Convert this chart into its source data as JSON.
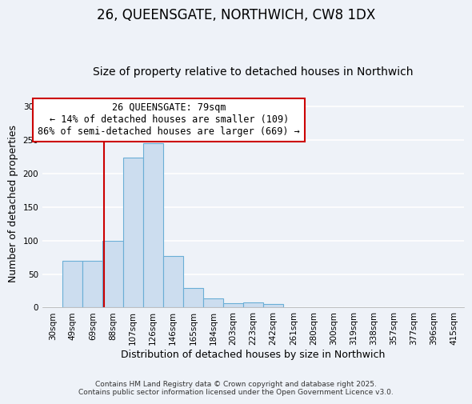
{
  "title": "26, QUEENSGATE, NORTHWICH, CW8 1DX",
  "subtitle": "Size of property relative to detached houses in Northwich",
  "xlabel": "Distribution of detached houses by size in Northwich",
  "ylabel": "Number of detached properties",
  "bar_labels": [
    "30sqm",
    "49sqm",
    "69sqm",
    "88sqm",
    "107sqm",
    "126sqm",
    "146sqm",
    "165sqm",
    "184sqm",
    "203sqm",
    "223sqm",
    "242sqm",
    "261sqm",
    "280sqm",
    "300sqm",
    "319sqm",
    "338sqm",
    "357sqm",
    "377sqm",
    "396sqm",
    "415sqm"
  ],
  "bar_values": [
    0,
    70,
    70,
    100,
    224,
    245,
    77,
    29,
    14,
    6,
    8,
    5,
    1,
    1,
    0,
    0,
    0,
    1,
    0,
    0,
    1
  ],
  "bar_color": "#ccddef",
  "bar_edge_color": "#6aaed6",
  "bar_width": 1.0,
  "vline_color": "#cc0000",
  "annotation_line1": "26 QUEENSGATE: 79sqm",
  "annotation_line2": "← 14% of detached houses are smaller (109)",
  "annotation_line3": "86% of semi-detached houses are larger (669) →",
  "box_color": "#cc0000",
  "ylim": [
    0,
    310
  ],
  "yticks": [
    0,
    50,
    100,
    150,
    200,
    250,
    300
  ],
  "footer1": "Contains HM Land Registry data © Crown copyright and database right 2025.",
  "footer2": "Contains public sector information licensed under the Open Government Licence v3.0.",
  "bg_color": "#eef2f8",
  "grid_color": "#ffffff",
  "title_fontsize": 12,
  "subtitle_fontsize": 10,
  "axis_label_fontsize": 9,
  "tick_fontsize": 7.5,
  "annotation_fontsize": 8.5,
  "footer_fontsize": 6.5
}
